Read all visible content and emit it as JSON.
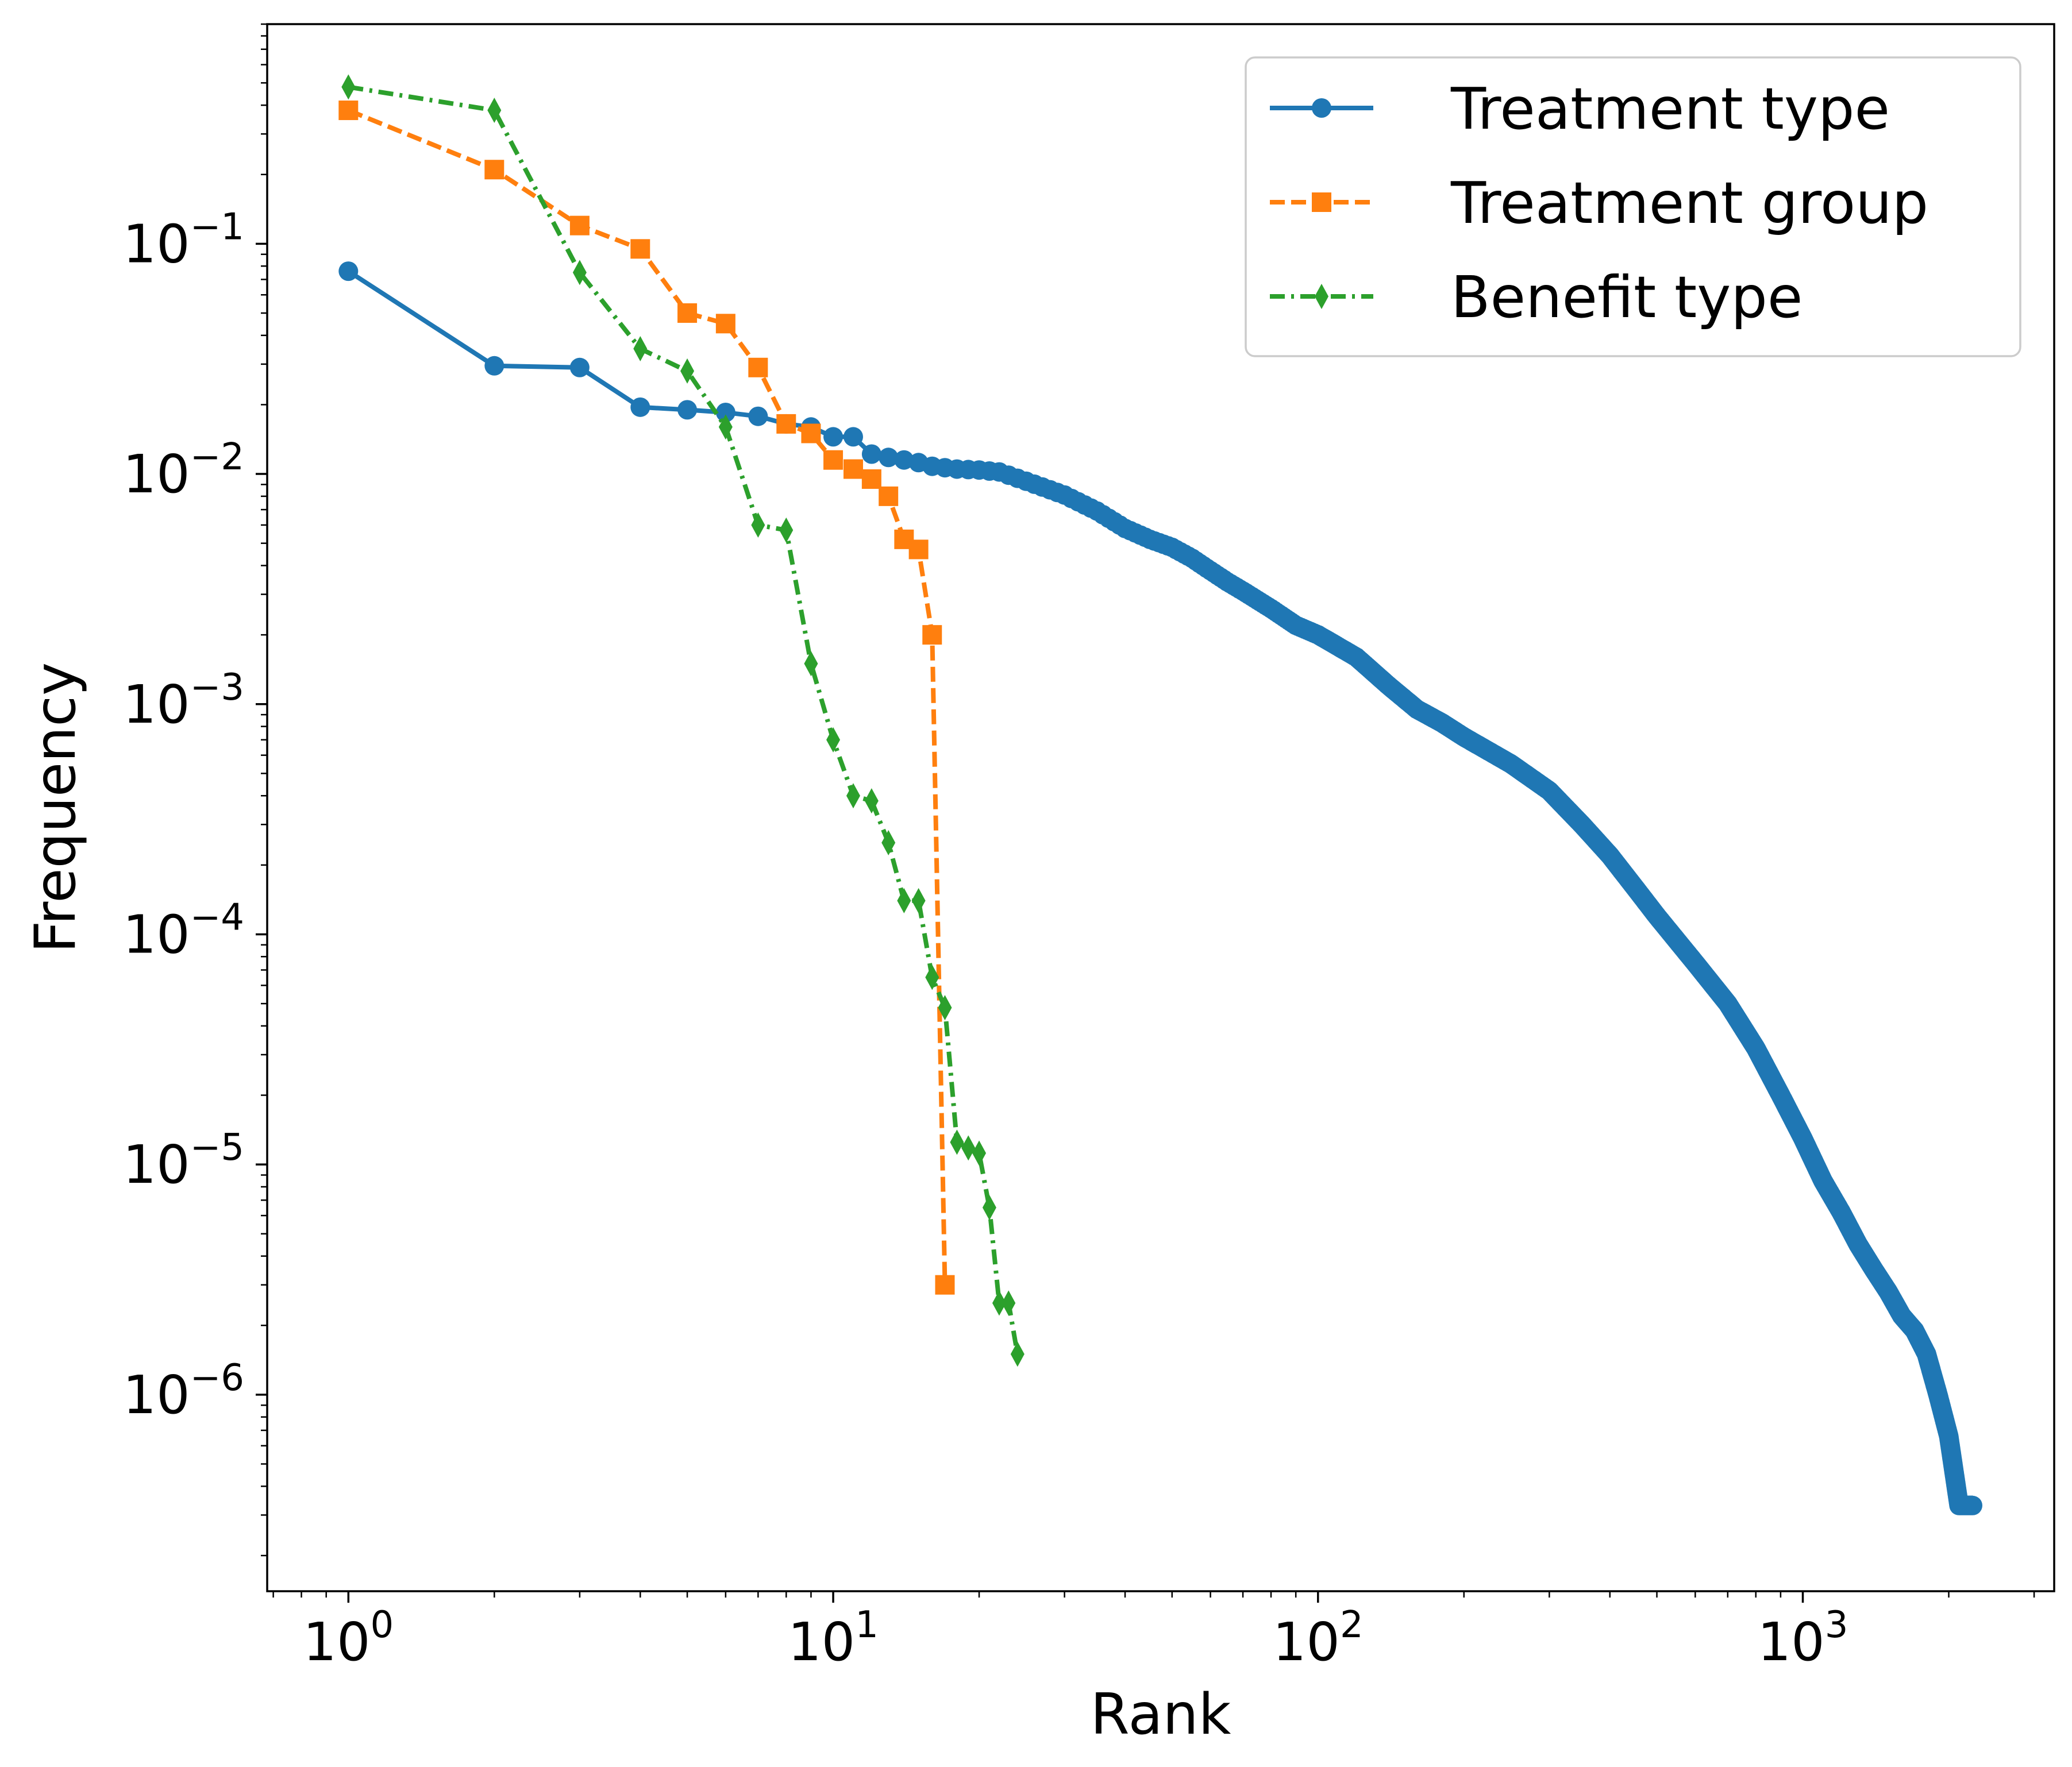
{
  "chart_data": {
    "type": "line",
    "title": "",
    "xlabel": "Rank",
    "ylabel": "Frequency",
    "xscale": "log",
    "yscale": "log",
    "xlim": [
      0.68,
      3300
    ],
    "ylim": [
      1.4e-07,
      0.9
    ],
    "grid": false,
    "legend_position": "top-right",
    "x_ticks": [
      {
        "value": 1,
        "base": "10",
        "exp": "0"
      },
      {
        "value": 10,
        "base": "10",
        "exp": "1"
      },
      {
        "value": 100,
        "base": "10",
        "exp": "2"
      },
      {
        "value": 1000,
        "base": "10",
        "exp": "3"
      }
    ],
    "y_ticks": [
      {
        "value": 1e-06,
        "base": "10",
        "exp": "−6"
      },
      {
        "value": 1e-05,
        "base": "10",
        "exp": "−5"
      },
      {
        "value": 0.0001,
        "base": "10",
        "exp": "−4"
      },
      {
        "value": 0.001,
        "base": "10",
        "exp": "−3"
      },
      {
        "value": 0.01,
        "base": "10",
        "exp": "−2"
      },
      {
        "value": 0.1,
        "base": "10",
        "exp": "−1"
      }
    ],
    "series": [
      {
        "name": "Treatment type",
        "color": "#1f77b4",
        "marker": "circle",
        "linestyle": "solid",
        "dense_from_rank": 12,
        "x": [
          1,
          2,
          3,
          4,
          5,
          6,
          7,
          8,
          9,
          10,
          11
        ],
        "values": [
          0.076,
          0.0295,
          0.029,
          0.0195,
          0.019,
          0.0185,
          0.0178,
          0.0165,
          0.016,
          0.0145,
          0.0145
        ],
        "curve_x": [
          12,
          13,
          14,
          15,
          16,
          18,
          20,
          22,
          25,
          30,
          35,
          40,
          45,
          50,
          55,
          60,
          65,
          70,
          80,
          90,
          100,
          120,
          140,
          160,
          180,
          200,
          250,
          300,
          350,
          400,
          450,
          500,
          600,
          700,
          800,
          900,
          1000,
          1100,
          1200,
          1300,
          1400,
          1500,
          1600,
          1700,
          1800,
          1900,
          2000,
          2100,
          2240
        ],
        "curve_y": [
          0.0122,
          0.0118,
          0.0115,
          0.0112,
          0.0108,
          0.0105,
          0.0104,
          0.0102,
          0.0093,
          0.0081,
          0.0069,
          0.0058,
          0.0052,
          0.0048,
          0.0043,
          0.0038,
          0.0034,
          0.0031,
          0.0026,
          0.0022,
          0.002,
          0.0016,
          0.0012,
          0.00095,
          0.00083,
          0.00072,
          0.00055,
          0.00042,
          0.0003,
          0.00022,
          0.00016,
          0.00012,
          7.5e-05,
          5e-05,
          3.2e-05,
          2e-05,
          1.3e-05,
          8.5e-06,
          6.2e-06,
          4.5e-06,
          3.5e-06,
          2.8e-06,
          2.2e-06,
          1.9e-06,
          1.5e-06,
          1e-06,
          6.6e-07,
          3.3e-07,
          3.3e-07
        ]
      },
      {
        "name": "Treatment group",
        "color": "#ff7f0e",
        "marker": "square",
        "linestyle": "dashed",
        "x": [
          1,
          2,
          3,
          4,
          5,
          6,
          7,
          8,
          9,
          10,
          11,
          12,
          13,
          14,
          15,
          16,
          17
        ],
        "values": [
          0.38,
          0.21,
          0.12,
          0.095,
          0.05,
          0.045,
          0.029,
          0.0165,
          0.015,
          0.0115,
          0.0105,
          0.0095,
          0.008,
          0.0052,
          0.0047,
          0.002,
          3e-06
        ]
      },
      {
        "name": "Benefit type",
        "color": "#2ca02c",
        "marker": "thin_diamond",
        "linestyle": "dashdot",
        "x": [
          1,
          2,
          3,
          4,
          5,
          6,
          7,
          8,
          9,
          10,
          11,
          12,
          13,
          14,
          15,
          16,
          17,
          18,
          19,
          20,
          21,
          22,
          23,
          24
        ],
        "values": [
          0.48,
          0.38,
          0.075,
          0.035,
          0.028,
          0.016,
          0.006,
          0.0057,
          0.0015,
          0.0007,
          0.0004,
          0.00038,
          0.00025,
          0.00014,
          0.00014,
          6.5e-05,
          4.8e-05,
          1.25e-05,
          1.18e-05,
          1.12e-05,
          6.5e-06,
          2.5e-06,
          2.5e-06,
          1.5e-06
        ]
      }
    ]
  }
}
